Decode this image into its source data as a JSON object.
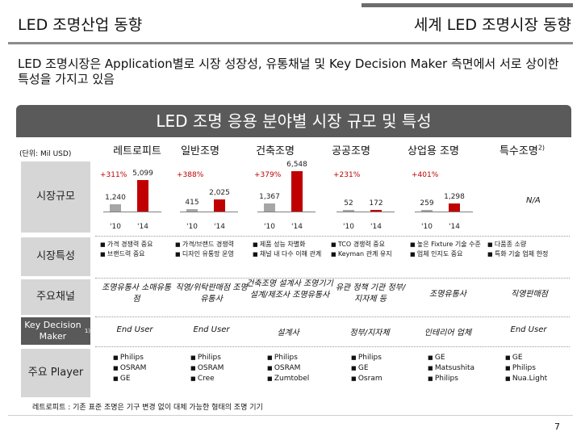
{
  "header": {
    "left_title": "LED 조명산업 동향",
    "right_title": "세계 LED 조명시장 동향"
  },
  "headline": "LED 조명시장은 Application별로 시장 성장성, 유통채널 및 Key Decision Maker 측면에서 서로 상이한 특성을 가지고 있음",
  "banner": "LED 조명 응용 분야별 시장 규모 및 특성",
  "unit": "(단위: Mil USD)",
  "columns": [
    "레트로피트",
    "일반조명",
    "건축조명",
    "공공조명",
    "상업용 조명",
    "특수조명"
  ],
  "special_sup": "2)",
  "row_labels": {
    "market_size": "시장규모",
    "features": "시장특성",
    "channel": "주요채널",
    "kdm": "Key Decision Maker",
    "kdm_sup": "1)",
    "player": "주요 Player"
  },
  "chart_data": {
    "type": "bar",
    "title": "시장규모",
    "categories": [
      "'10",
      "'14"
    ],
    "series": [
      {
        "name": "레트로피트",
        "values": [
          1240,
          5099
        ],
        "growth": "+311%"
      },
      {
        "name": "일반조명",
        "values": [
          415,
          2025
        ],
        "growth": "+388%"
      },
      {
        "name": "건축조명",
        "values": [
          1367,
          6548
        ],
        "growth": "+379%"
      },
      {
        "name": "공공조명",
        "values": [
          52,
          172
        ],
        "growth": "+231%"
      },
      {
        "name": "상업용 조명",
        "values": [
          259,
          1298
        ],
        "growth": "+401%"
      }
    ],
    "value_labels": {
      "레트로피트": [
        "1,240",
        "5,099"
      ],
      "일반조명": [
        "415",
        "2,025"
      ],
      "건축조명": [
        "1,367",
        "6,548"
      ],
      "공공조명": [
        "52",
        "172"
      ],
      "상업용 조명": [
        "259",
        "1,298"
      ]
    },
    "not_available": "N/A"
  },
  "features": [
    [
      "가격 경쟁력 중요",
      "브랜드력 중요"
    ],
    [
      "가격/브랜드 경쟁력",
      "디자인 유통망 운영"
    ],
    [
      "제품 성능 차별화",
      "채널 내 다수 이해 관계"
    ],
    [
      "TCO 경쟁력 중요",
      "Keyman 관계 유지"
    ],
    [
      "높은 Fixture 기술 수준",
      "업체 인지도 중요"
    ],
    [
      "다품종 소량",
      "특화 기술 업체 한정"
    ]
  ],
  "channels": [
    "조명유통사 소매유통점",
    "직영/위탁판매점 조명유통사",
    "건축조명 설계사 조명기기 설계/제조사 조명유통사",
    "유관 정책 기관 정부/지자체 등",
    "조명유통사",
    "직영판매점"
  ],
  "kdm": [
    "End User",
    "End User",
    "설계사",
    "정부/지자체",
    "인테리어 업체",
    "End User"
  ],
  "players": [
    [
      "Philips",
      "OSRAM",
      "GE"
    ],
    [
      "Philips",
      "OSRAM",
      "Cree"
    ],
    [
      "Philips",
      "OSRAM",
      "Zumtobel"
    ],
    [
      "Philips",
      "GE",
      "Osram"
    ],
    [
      "GE",
      "Matsushita",
      "Philips"
    ],
    [
      "GE",
      "Philips",
      "Nua.Light"
    ]
  ],
  "footnote": "레트로피트 : 기존 표준 조명은 기구 변경 없이 대체 가능한 형태의 조명 기기",
  "page_number": "7",
  "colors": {
    "accent": "#c00000",
    "banner": "#5a5a5a"
  }
}
